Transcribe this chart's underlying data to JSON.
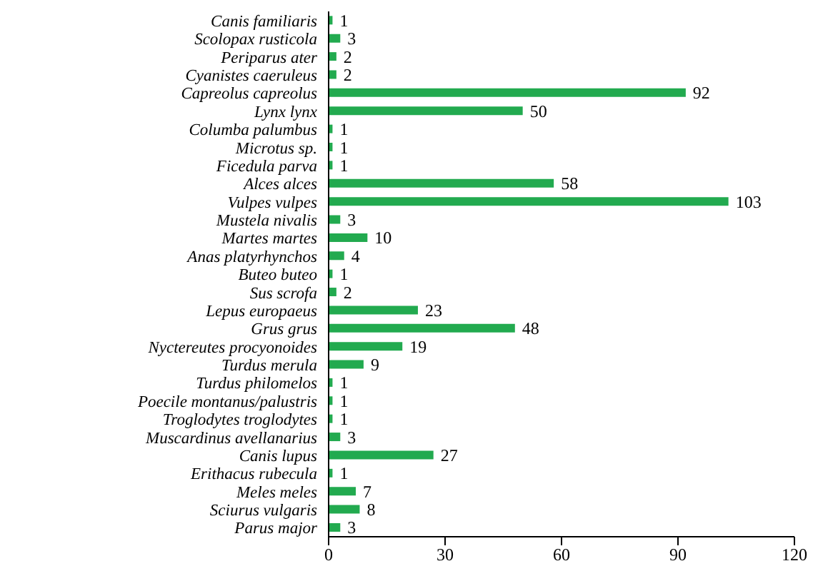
{
  "chart_data": {
    "type": "bar",
    "orientation": "horizontal",
    "categories": [
      "Canis familiaris",
      "Scolopax rusticola",
      "Periparus ater",
      "Cyanistes caeruleus",
      "Capreolus capreolus",
      "Lynx lynx",
      "Columba palumbus",
      "Microtus sp.",
      "Ficedula parva",
      "Alces alces",
      "Vulpes vulpes",
      "Mustela nivalis",
      "Martes martes",
      "Anas platyrhynchos",
      "Buteo buteo",
      "Sus scrofa",
      "Lepus europaeus",
      "Grus grus",
      "Nyctereutes procyonoides",
      "Turdus merula",
      "Turdus philomelos",
      "Poecile montanus/palustris",
      "Troglodytes troglodytes",
      "Muscardinus avellanarius",
      "Canis lupus",
      "Erithacus rubecula",
      "Meles meles",
      "Sciurus vulgaris",
      "Parus major"
    ],
    "values": [
      1,
      3,
      2,
      2,
      92,
      50,
      1,
      1,
      1,
      58,
      103,
      3,
      10,
      4,
      1,
      2,
      23,
      48,
      19,
      9,
      1,
      1,
      1,
      3,
      27,
      1,
      7,
      8,
      3
    ],
    "color": "#22aa4f",
    "xlim": [
      0,
      120
    ],
    "xticks": [
      0,
      30,
      60,
      90,
      120
    ],
    "data_labels": true,
    "grid": false
  }
}
